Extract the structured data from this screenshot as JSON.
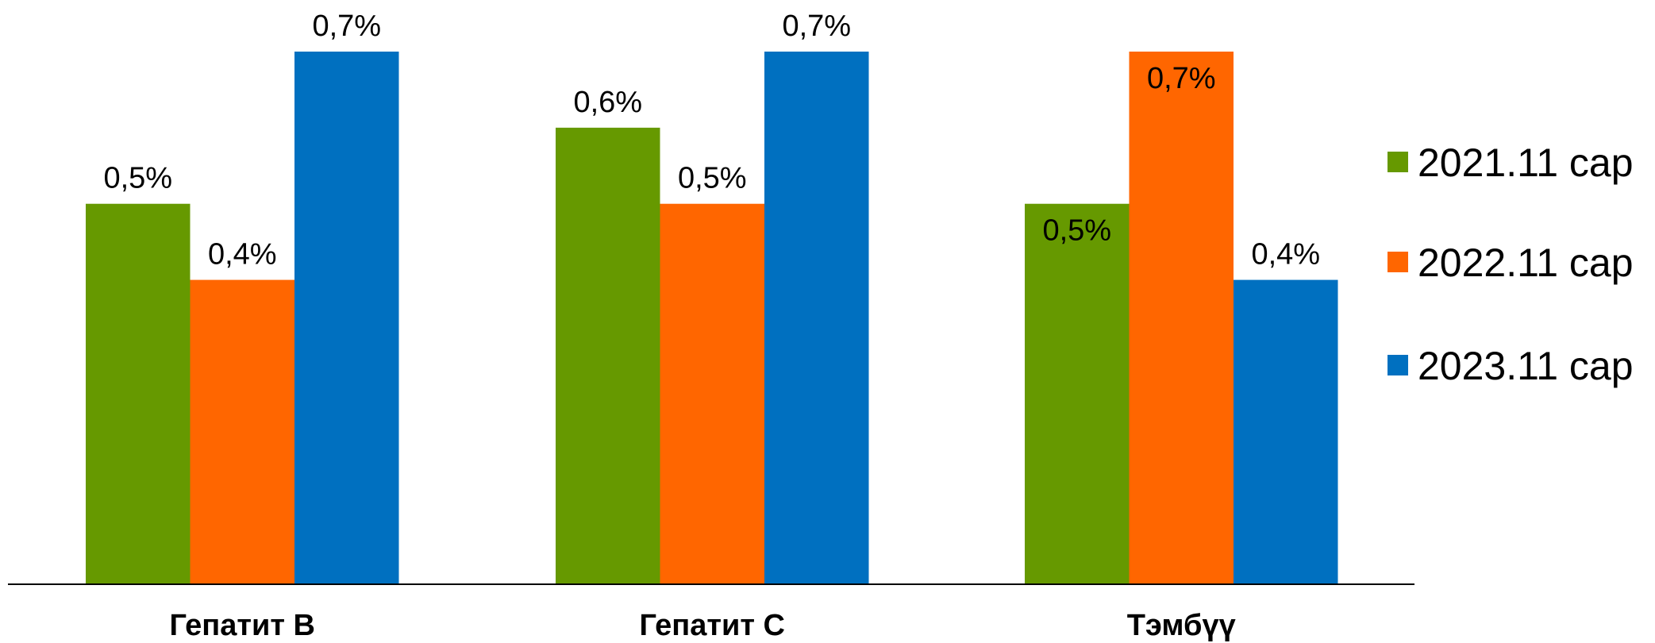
{
  "chart_data": {
    "type": "bar",
    "categories": [
      "Гепатит B",
      "Гепатит C",
      "Тэмбүү"
    ],
    "series": [
      {
        "name": "2021.11 сар",
        "color": "#669900",
        "values": [
          0.5,
          0.6,
          0.5
        ],
        "labels": [
          "0,5%",
          "0,6%",
          "0,5%"
        ]
      },
      {
        "name": "2022.11 сар",
        "color": "#FF6600",
        "values": [
          0.4,
          0.5,
          0.7
        ],
        "labels": [
          "0,4%",
          "0,5%",
          "0,7%"
        ]
      },
      {
        "name": "2023.11 сар",
        "color": "#0070C0",
        "values": [
          0.7,
          0.7,
          0.4
        ],
        "labels": [
          "0,7%",
          "0,7%",
          "0,4%"
        ]
      }
    ],
    "ylim": [
      0,
      0.7
    ],
    "grid": false,
    "legend_position": "right",
    "data_label_inside": [
      [
        false,
        false,
        true
      ],
      [
        false,
        false,
        true
      ],
      [
        false,
        false,
        false
      ]
    ]
  }
}
